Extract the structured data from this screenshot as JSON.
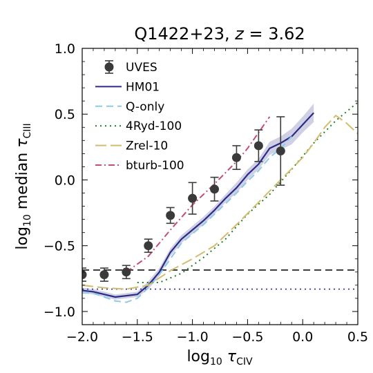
{
  "chart_data": {
    "type": "line",
    "title": {
      "main": "Q1422+23, ",
      "italic": "z",
      "rest": " = 3.62"
    },
    "xlabel": {
      "pre": "log",
      "sub": "10",
      "tau": " τ",
      "tau_sub": "CIV"
    },
    "ylabel": {
      "pre": "log",
      "sub": "10",
      "mid": " median ",
      "tau": "τ",
      "tau_sub": "CIII"
    },
    "xlim": [
      -2.0,
      0.5
    ],
    "ylim": [
      -1.1,
      1.0
    ],
    "xticks": [
      -2.0,
      -1.5,
      -1.0,
      -0.5,
      0.0,
      0.5
    ],
    "xtick_labels": [
      "−2.0",
      "−1.5",
      "−1.0",
      "−0.5",
      "0.0",
      "0.5"
    ],
    "yticks": [
      -1.0,
      -0.5,
      0.0,
      0.5,
      1.0
    ],
    "ytick_labels": [
      "−1.0",
      "−0.5",
      "0.0",
      "0.5",
      "1.0"
    ],
    "series": [
      {
        "name": "UVES",
        "kind": "errorbar",
        "color": "#3a3a3a",
        "x": [
          -2.0,
          -1.8,
          -1.6,
          -1.4,
          -1.2,
          -1.0,
          -0.8,
          -0.6,
          -0.4,
          -0.2
        ],
        "y": [
          -0.72,
          -0.72,
          -0.7,
          -0.5,
          -0.27,
          -0.14,
          -0.07,
          0.17,
          0.26,
          0.22
        ],
        "err": [
          0.05,
          0.05,
          0.05,
          0.05,
          0.06,
          0.12,
          0.09,
          0.09,
          0.12,
          0.26
        ]
      },
      {
        "name": "HM01",
        "kind": "line",
        "color": "#2b2a86",
        "dash": "solid",
        "x": [
          -2.0,
          -1.9,
          -1.8,
          -1.7,
          -1.6,
          -1.5,
          -1.4,
          -1.3,
          -1.2,
          -1.1,
          -1.0,
          -0.9,
          -0.8,
          -0.7,
          -0.6,
          -0.5,
          -0.4,
          -0.3,
          -0.2,
          -0.1,
          0.0,
          0.1
        ],
        "y": [
          -0.84,
          -0.85,
          -0.87,
          -0.89,
          -0.88,
          -0.87,
          -0.8,
          -0.7,
          -0.55,
          -0.45,
          -0.38,
          -0.31,
          -0.23,
          -0.14,
          -0.06,
          0.04,
          0.12,
          0.24,
          0.28,
          0.33,
          0.42,
          0.51
        ],
        "band": [
          0.02,
          0.02,
          0.02,
          0.02,
          0.02,
          0.02,
          0.03,
          0.03,
          0.03,
          0.03,
          0.03,
          0.03,
          0.03,
          0.03,
          0.04,
          0.04,
          0.04,
          0.05,
          0.05,
          0.06,
          0.06,
          0.07
        ]
      },
      {
        "name": "Q-only",
        "kind": "line",
        "color": "#8ccbe6",
        "dash": "dashed",
        "x": [
          -2.0,
          -1.9,
          -1.8,
          -1.7,
          -1.6,
          -1.5,
          -1.4,
          -1.3,
          -1.2,
          -1.1,
          -1.0,
          -0.9,
          -0.8,
          -0.7,
          -0.6,
          -0.5,
          -0.4,
          -0.3,
          -0.2,
          -0.1
        ],
        "y": [
          -0.86,
          -0.86,
          -0.89,
          -0.92,
          -0.93,
          -0.9,
          -0.82,
          -0.72,
          -0.6,
          -0.48,
          -0.41,
          -0.34,
          -0.26,
          -0.18,
          -0.1,
          -0.01,
          0.07,
          0.17,
          0.24,
          0.33
        ]
      },
      {
        "name": "4Ryd-100",
        "kind": "line",
        "color": "#207a20",
        "dash": "dotted",
        "x": [
          -1.5,
          -1.3,
          -1.1,
          -0.9,
          -0.7,
          -0.5,
          -0.3,
          -0.1,
          0.1,
          0.3,
          0.5
        ],
        "y": [
          -0.78,
          -0.78,
          -0.71,
          -0.59,
          -0.45,
          -0.26,
          -0.11,
          0.08,
          0.28,
          0.45,
          0.59
        ]
      },
      {
        "name": "Zrel-10",
        "kind": "line",
        "color": "#d2bd6e",
        "dash": "longdash",
        "x": [
          -2.0,
          -1.8,
          -1.6,
          -1.4,
          -1.2,
          -1.0,
          -0.8,
          -0.6,
          -0.4,
          -0.2,
          0.0,
          0.1,
          0.2,
          0.3,
          0.4,
          0.5
        ],
        "y": [
          -0.8,
          -0.82,
          -0.83,
          -0.8,
          -0.69,
          -0.6,
          -0.5,
          -0.34,
          -0.17,
          0.0,
          0.17,
          0.28,
          0.4,
          0.49,
          0.43,
          0.35
        ]
      },
      {
        "name": "bturb-100",
        "kind": "line",
        "color": "#c44c76",
        "dash": "dashdot",
        "x": [
          -1.6,
          -1.4,
          -1.2,
          -1.0,
          -0.8,
          -0.6,
          -0.5,
          -0.4,
          -0.3
        ],
        "y": [
          -0.7,
          -0.58,
          -0.38,
          -0.19,
          -0.03,
          0.14,
          0.24,
          0.36,
          0.48
        ]
      }
    ],
    "hlines": [
      {
        "y": -0.685,
        "color": "#111111",
        "dash": "dashed"
      },
      {
        "y": -0.83,
        "color": "#2b2a86",
        "dash": "dotted"
      }
    ],
    "legend": {
      "placement": "top-left"
    },
    "grid": false
  }
}
